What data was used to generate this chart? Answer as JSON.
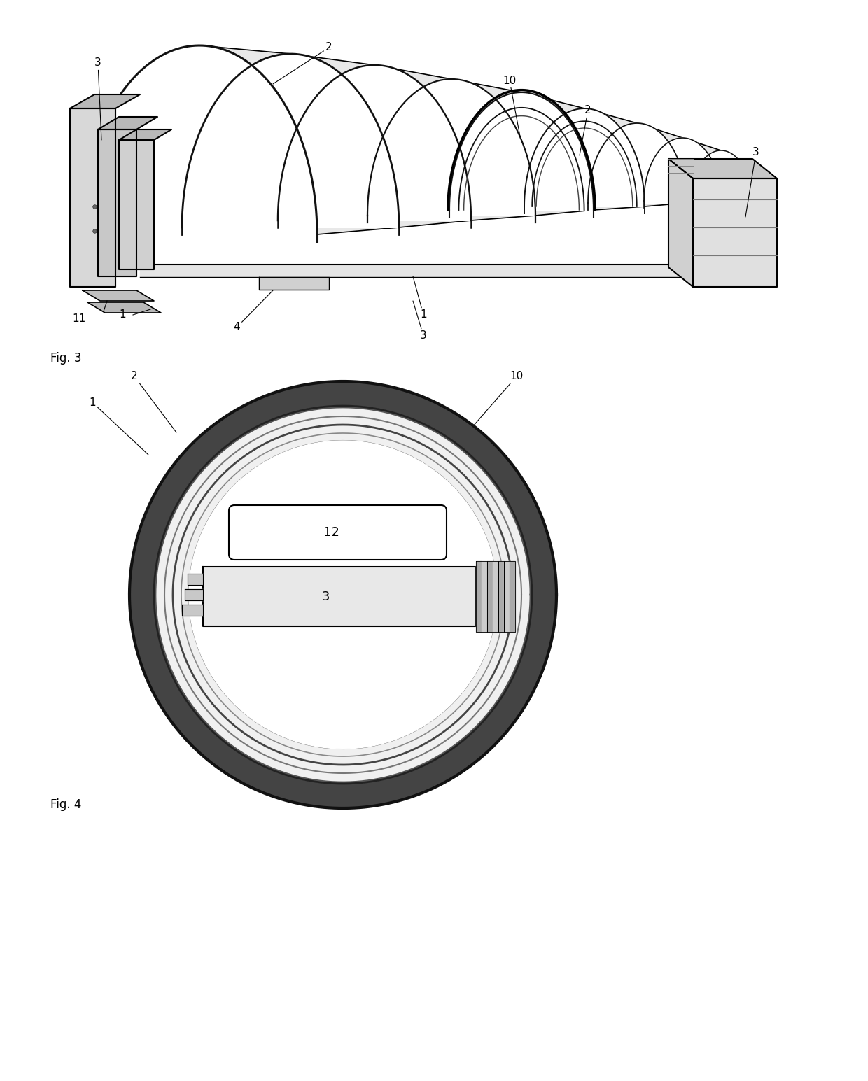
{
  "bg_color": "#ffffff",
  "line_color": "#000000",
  "fig_width": 12.4,
  "fig_height": 15.45,
  "fig3_label": "Fig. 3",
  "fig4_label": "Fig. 4",
  "label_fontsize": 12,
  "annotation_fontsize": 11
}
